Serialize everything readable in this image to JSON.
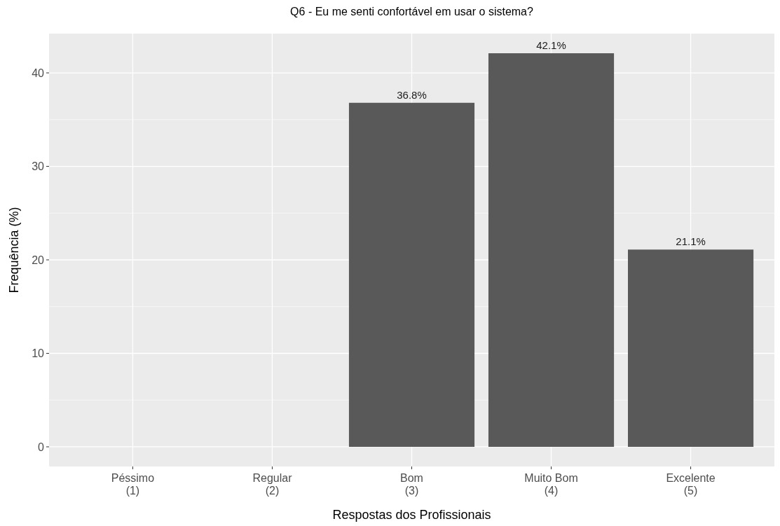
{
  "chart_data": {
    "type": "bar",
    "title": "Q6 - Eu me senti confortável em usar o sistema?",
    "xlabel": "Respostas dos Profissionais",
    "ylabel": "Frequência (%)",
    "categories": [
      "Péssimo\n(1)",
      "Regular\n(2)",
      "Bom\n(3)",
      "Muito Bom\n(4)",
      "Excelente\n(5)"
    ],
    "values": [
      null,
      null,
      36.8,
      42.1,
      21.1
    ],
    "value_labels": [
      null,
      null,
      "36.8%",
      "42.1%",
      "21.1%"
    ],
    "color": "#595959",
    "ylim": [
      -2.1,
      44.2
    ],
    "yticks": [
      0,
      10,
      20,
      30,
      40
    ],
    "grid": true
  }
}
